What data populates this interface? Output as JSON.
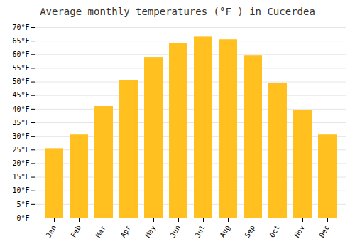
{
  "chart_data": {
    "type": "bar",
    "title": "Average monthly temperatures (°F ) in Cucerdea",
    "categories": [
      "Jan",
      "Feb",
      "Mar",
      "Apr",
      "May",
      "Jun",
      "Jul",
      "Aug",
      "Sep",
      "Oct",
      "Nov",
      "Dec"
    ],
    "values": [
      25.5,
      30.5,
      41.0,
      50.5,
      59.0,
      64.0,
      66.5,
      65.5,
      59.5,
      49.5,
      39.5,
      30.5
    ],
    "color": "#FFC020",
    "ylim": [
      0,
      70
    ],
    "yticks": [
      {
        "value": 0,
        "label": "0°F"
      },
      {
        "value": 5,
        "label": "5°F"
      },
      {
        "value": 10,
        "label": "10°F"
      },
      {
        "value": 15,
        "label": "15°F"
      },
      {
        "value": 20,
        "label": "20°F"
      },
      {
        "value": 25,
        "label": "25°F"
      },
      {
        "value": 30,
        "label": "30°F"
      },
      {
        "value": 35,
        "label": "35°F"
      },
      {
        "value": 40,
        "label": "40°F"
      },
      {
        "value": 45,
        "label": "45°F"
      },
      {
        "value": 50,
        "label": "50°F"
      },
      {
        "value": 55,
        "label": "55°F"
      },
      {
        "value": 60,
        "label": "60°F"
      },
      {
        "value": 65,
        "label": "65°F"
      },
      {
        "value": 70,
        "label": "70°F"
      }
    ],
    "grid": true
  }
}
